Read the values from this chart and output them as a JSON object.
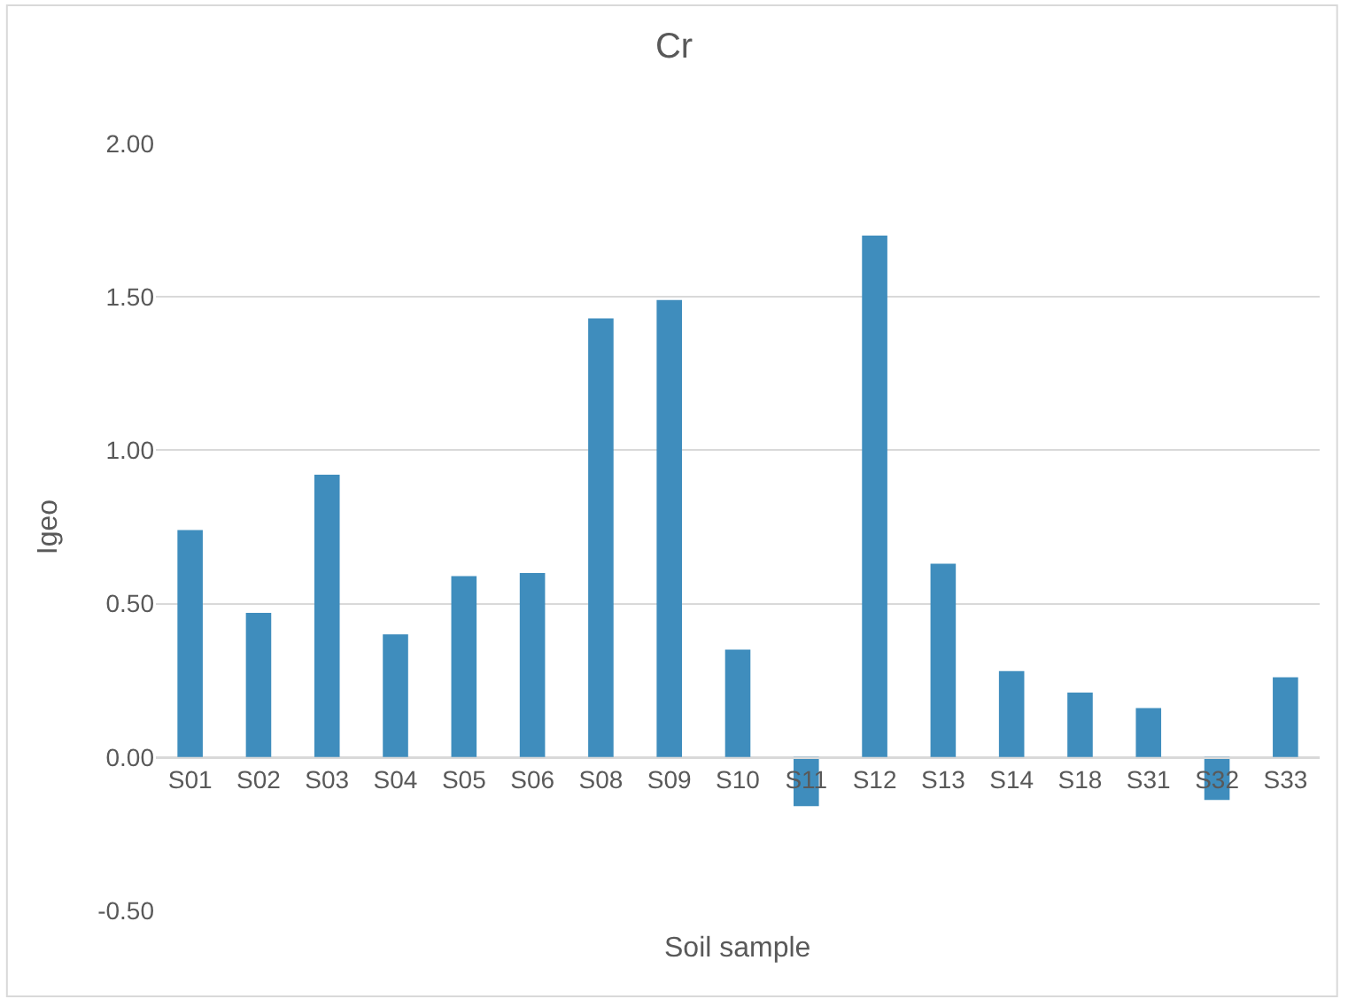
{
  "chart_data": {
    "type": "bar",
    "title": "Cr",
    "xlabel": "Soil sample",
    "ylabel": "Igeo",
    "categories": [
      "S01",
      "S02",
      "S03",
      "S04",
      "S05",
      "S06",
      "S08",
      "S09",
      "S10",
      "S11",
      "S12",
      "S13",
      "S14",
      "S18",
      "S31",
      "S32",
      "S33"
    ],
    "values": [
      0.74,
      0.47,
      0.92,
      0.4,
      0.59,
      0.6,
      1.43,
      1.49,
      0.35,
      -0.16,
      1.7,
      0.63,
      0.28,
      0.21,
      0.16,
      -0.14,
      0.26
    ],
    "color": "#3f8dbd",
    "ylim": [
      -0.5,
      2.0
    ],
    "yticks": [
      {
        "value": -0.5,
        "label": "-0.50"
      },
      {
        "value": 0,
        "label": "0.00"
      },
      {
        "value": 0.5,
        "label": "0.50"
      },
      {
        "value": 1,
        "label": "1.00"
      },
      {
        "value": 1.5,
        "label": "1.50"
      },
      {
        "value": 2,
        "label": "2.00"
      }
    ],
    "grid": "y"
  }
}
